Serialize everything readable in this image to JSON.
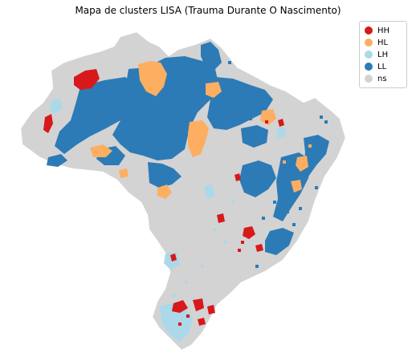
{
  "title": "Mapa de clusters LISA (Trauma Durante O Nascimento)",
  "legend": [
    {
      "label": "HH",
      "color": "#d7191c"
    },
    {
      "label": "HL",
      "color": "#fdae61"
    },
    {
      "label": "LH",
      "color": "#abd9e9"
    },
    {
      "label": "LL",
      "color": "#2c7bb6"
    },
    {
      "label": "ns",
      "color": "#d3d3d3"
    }
  ],
  "colors": {
    "HH": "#d7191c",
    "HL": "#fdae61",
    "LH": "#abd9e9",
    "LL": "#2c7bb6",
    "ns": "#d3d3d3"
  }
}
